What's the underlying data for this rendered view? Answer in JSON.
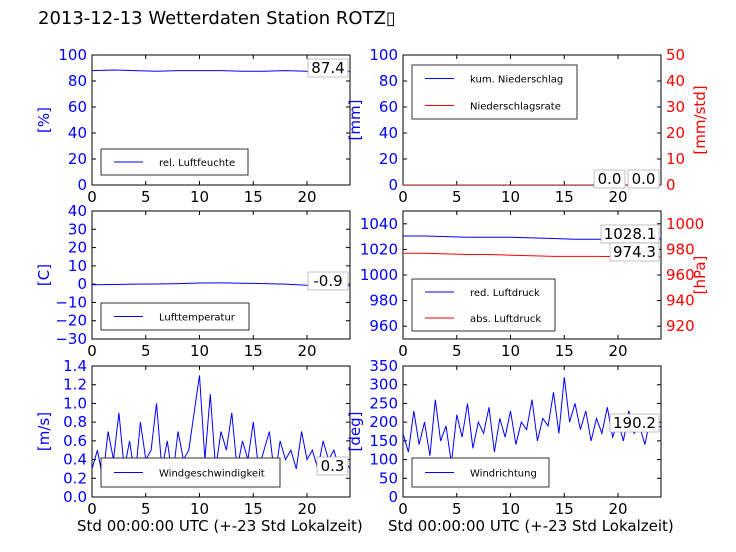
{
  "title": "2013-12-13 Wetterdaten Station ROTZ▯",
  "xlabel": "Std 00:00:00 UTC (+-23 Std Lokalzeit)",
  "colors": {
    "blue": "#0000ff",
    "red": "#ff0000",
    "axis_left": "#0000ff",
    "axis_right": "#ff0000"
  },
  "chart_data": [
    {
      "id": "humidity",
      "type": "line",
      "xlim": [
        0,
        24
      ],
      "xticks": [
        0,
        5,
        10,
        15,
        20
      ],
      "ylim": [
        0,
        100
      ],
      "yticks": [
        0,
        20,
        40,
        60,
        80,
        100
      ],
      "ylabel": "[%]",
      "current_value": "87.4",
      "legend_position": "lower-left",
      "series": [
        {
          "name": "rel. Luftfeuchte",
          "color": "#0000ff",
          "axis": "left",
          "x": [
            0,
            2,
            4,
            6,
            8,
            10,
            12,
            14,
            16,
            18,
            20,
            22,
            24
          ],
          "y": [
            88,
            88.5,
            88,
            87.5,
            88,
            88,
            88,
            87.5,
            87.5,
            88,
            87.5,
            87.4,
            87.4
          ]
        }
      ]
    },
    {
      "id": "precipitation",
      "type": "line",
      "xlim": [
        0,
        24
      ],
      "xticks": [
        0,
        5,
        10,
        15,
        20
      ],
      "ylim": [
        0,
        100
      ],
      "yticks": [
        0,
        20,
        40,
        60,
        80,
        100
      ],
      "ylabel": "[mm]",
      "ylim_right": [
        0,
        50
      ],
      "yticks_right": [
        0,
        10,
        20,
        30,
        40,
        50
      ],
      "ylabel_right": "[mm/std]",
      "current_value": "0.0",
      "current_value_right": "0.0",
      "legend_position": "upper-left",
      "series": [
        {
          "name": "kum. Niederschlag",
          "color": "#0000ff",
          "axis": "left",
          "x": [
            0,
            24
          ],
          "y": [
            0,
            0
          ]
        },
        {
          "name": "Niederschlagsrate",
          "color": "#ff0000",
          "axis": "right",
          "x": [
            0,
            24
          ],
          "y": [
            0,
            0
          ]
        }
      ]
    },
    {
      "id": "temperature",
      "type": "line",
      "xlim": [
        0,
        24
      ],
      "xticks": [
        0,
        5,
        10,
        15,
        20
      ],
      "ylim": [
        -30,
        40
      ],
      "yticks": [
        -30,
        -20,
        -10,
        0,
        10,
        20,
        30,
        40
      ],
      "ylabel": "[C]",
      "current_value": "-0.9",
      "legend_position": "lower-left",
      "series": [
        {
          "name": "Lufttemperatur",
          "color": "#0000ff",
          "axis": "left",
          "x": [
            0,
            2,
            4,
            6,
            8,
            10,
            12,
            14,
            16,
            18,
            20,
            22,
            24
          ],
          "y": [
            -0.3,
            -0.2,
            0,
            0.1,
            0.3,
            0.6,
            0.7,
            0.5,
            0.3,
            0,
            -0.6,
            -0.9,
            -0.9
          ]
        }
      ]
    },
    {
      "id": "pressure",
      "type": "line",
      "xlim": [
        0,
        24
      ],
      "xticks": [
        0,
        5,
        10,
        15,
        20
      ],
      "ylim": [
        950,
        1050
      ],
      "yticks": [
        960,
        980,
        1000,
        1020,
        1040
      ],
      "ylim_right": [
        910,
        1010
      ],
      "yticks_right": [
        920,
        940,
        960,
        980,
        1000
      ],
      "ylabel_right": "[hPa]",
      "current_value": "1028.1",
      "current_value_right": "974.3",
      "legend_position": "lower-left",
      "series": [
        {
          "name": "red. Luftdruck",
          "color": "#0000ff",
          "axis": "left",
          "x": [
            0,
            2,
            4,
            6,
            8,
            10,
            12,
            14,
            16,
            18,
            20,
            22,
            24
          ],
          "y": [
            1030.5,
            1030.5,
            1030,
            1029.5,
            1029.5,
            1029.5,
            1029,
            1028.5,
            1028,
            1028,
            1028,
            1028.1,
            1028.1
          ]
        },
        {
          "name": "abs. Luftdruck",
          "color": "#ff0000",
          "axis": "right",
          "x": [
            0,
            2,
            4,
            6,
            8,
            10,
            12,
            14,
            16,
            18,
            20,
            22,
            24
          ],
          "y": [
            977,
            977,
            976.5,
            976,
            976,
            975.5,
            975,
            974.5,
            974.5,
            974.5,
            974.4,
            974.3,
            974.3
          ]
        }
      ]
    },
    {
      "id": "windspeed",
      "type": "line",
      "xlim": [
        0,
        24
      ],
      "xticks": [
        0,
        5,
        10,
        15,
        20
      ],
      "ylim": [
        0,
        1.4
      ],
      "yticks": [
        0.0,
        0.2,
        0.4,
        0.6,
        0.8,
        1.0,
        1.2,
        1.4
      ],
      "ylabel": "[m/s]",
      "current_value": "0.3",
      "legend_position": "lower-left",
      "series": [
        {
          "name": "Windgeschwindigkeit",
          "color": "#0000ff",
          "axis": "left",
          "x": [
            0,
            0.5,
            1,
            1.5,
            2,
            2.5,
            3,
            3.5,
            4,
            4.5,
            5,
            5.5,
            6,
            6.5,
            7,
            7.5,
            8,
            8.5,
            9,
            9.5,
            10,
            10.5,
            11,
            11.5,
            12,
            12.5,
            13,
            13.5,
            14,
            14.5,
            15,
            15.5,
            16,
            16.5,
            17,
            17.5,
            18,
            18.5,
            19,
            19.5,
            20,
            20.5,
            21,
            21.5,
            22,
            22.5,
            23,
            23.5,
            24
          ],
          "y": [
            0.3,
            0.5,
            0.2,
            0.7,
            0.4,
            0.9,
            0.3,
            0.6,
            0.2,
            0.8,
            0.4,
            0.5,
            1.0,
            0.3,
            0.6,
            0.2,
            0.7,
            0.4,
            0.5,
            0.9,
            1.3,
            0.4,
            1.1,
            0.3,
            0.7,
            0.5,
            0.9,
            0.3,
            0.6,
            0.4,
            0.8,
            0.3,
            0.5,
            0.7,
            0.2,
            0.6,
            0.4,
            0.5,
            0.3,
            0.7,
            0.4,
            0.5,
            0.3,
            0.6,
            0.4,
            0.5,
            0.3,
            0.4,
            0.3
          ]
        }
      ]
    },
    {
      "id": "winddirection",
      "type": "line",
      "xlim": [
        0,
        24
      ],
      "xticks": [
        0,
        5,
        10,
        15,
        20
      ],
      "ylim": [
        0,
        350
      ],
      "yticks": [
        0,
        50,
        100,
        150,
        200,
        250,
        300,
        350
      ],
      "ylabel": "[deg]",
      "current_value": "190.2",
      "legend_position": "lower-left",
      "series": [
        {
          "name": "Windrichtung",
          "color": "#0000ff",
          "axis": "left",
          "x": [
            0,
            0.5,
            1,
            1.5,
            2,
            2.5,
            3,
            3.5,
            4,
            4.5,
            5,
            5.5,
            6,
            6.5,
            7,
            7.5,
            8,
            8.5,
            9,
            9.5,
            10,
            10.5,
            11,
            11.5,
            12,
            12.5,
            13,
            13.5,
            14,
            14.5,
            15,
            15.5,
            16,
            16.5,
            17,
            17.5,
            18,
            18.5,
            19,
            19.5,
            20,
            20.5,
            21,
            21.5,
            22,
            22.5,
            23,
            23.5,
            24
          ],
          "y": [
            170,
            120,
            230,
            140,
            200,
            110,
            260,
            150,
            190,
            90,
            220,
            160,
            250,
            130,
            200,
            170,
            240,
            120,
            210,
            160,
            230,
            140,
            200,
            180,
            260,
            150,
            210,
            190,
            280,
            170,
            320,
            200,
            250,
            180,
            230,
            150,
            210,
            170,
            240,
            160,
            200,
            150,
            230,
            170,
            190,
            140,
            210,
            180,
            190
          ]
        }
      ]
    }
  ]
}
